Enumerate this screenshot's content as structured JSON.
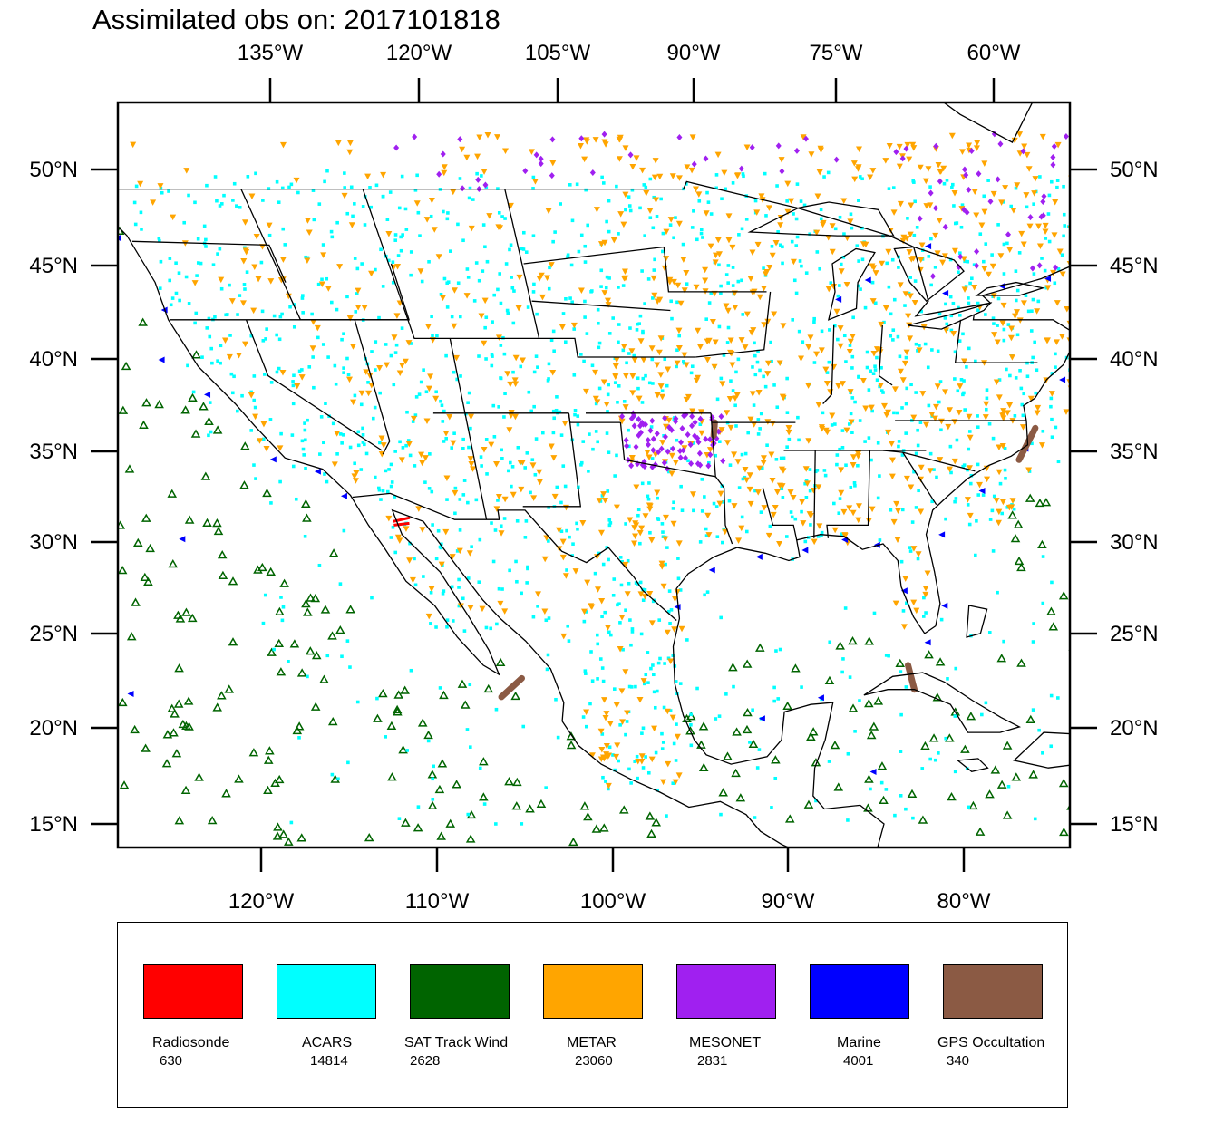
{
  "title": "Assimilated obs on: 2017101818",
  "map": {
    "top_lon_labels": [
      "135°W",
      "120°W",
      "105°W",
      "90°W",
      "75°W",
      "60°W"
    ],
    "bottom_lon_labels": [
      "120°W",
      "110°W",
      "100°W",
      "90°W",
      "80°W"
    ],
    "left_lat_labels": [
      "50°N",
      "45°N",
      "40°N",
      "35°N",
      "30°N",
      "25°N",
      "20°N",
      "15°N"
    ],
    "right_lat_labels": [
      "50°N",
      "45°N",
      "40°N",
      "35°N",
      "30°N",
      "25°N",
      "20°N",
      "15°N"
    ]
  },
  "legend": [
    {
      "label": "Radiosonde",
      "count": "630",
      "color": "#ff0000",
      "marker": "none"
    },
    {
      "label": "ACARS",
      "count": "14814",
      "color": "#00ffff",
      "marker": "square"
    },
    {
      "label": "SAT Track Wind",
      "count": "2628",
      "color": "#006400",
      "marker": "triangle"
    },
    {
      "label": "METAR",
      "count": "23060",
      "color": "#ffa500",
      "marker": "inverted-triangle"
    },
    {
      "label": "MESONET",
      "count": "2831",
      "color": "#a020f0",
      "marker": "diamond"
    },
    {
      "label": "Marine",
      "count": "4001",
      "color": "#0000ff",
      "marker": "left-triangle"
    },
    {
      "label": "GPS Occultation",
      "count": "340",
      "color": "#8b5a44",
      "marker": "stroke"
    }
  ]
}
